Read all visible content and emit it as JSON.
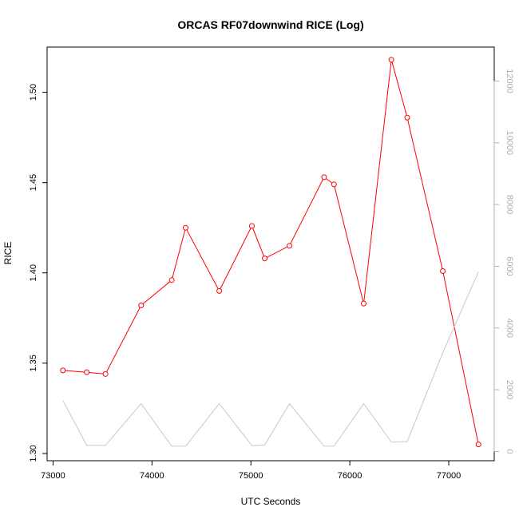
{
  "chart_data": {
    "type": "line",
    "title": "ORCAS RF07downwind RICE (Log)",
    "xlabel": "UTC Seconds",
    "ylabel": "RICE",
    "xlim": [
      72940,
      77460
    ],
    "ylim": [
      1.296,
      1.525
    ],
    "y2lim": [
      -300,
      13100
    ],
    "x_ticks": [
      73000,
      74000,
      75000,
      76000,
      77000
    ],
    "y_ticks": [
      1.3,
      1.35,
      1.4,
      1.45,
      1.5
    ],
    "y2_ticks": [
      0,
      2000,
      4000,
      6000,
      8000,
      10000,
      12000
    ],
    "grid": false,
    "series": [
      {
        "axis": "left",
        "color": "#ff0000",
        "marker": "open-circle",
        "x": [
          73100,
          73340,
          73530,
          73890,
          74200,
          74340,
          74680,
          75010,
          75140,
          75390,
          75740,
          75840,
          76140,
          76420,
          76580,
          76940,
          77300
        ],
        "y": [
          1.346,
          1.345,
          1.344,
          1.382,
          1.396,
          1.425,
          1.39,
          1.426,
          1.408,
          1.415,
          1.453,
          1.449,
          1.383,
          1.518,
          1.486,
          1.401,
          1.305
        ]
      },
      {
        "axis": "right",
        "color": "#c8c8c8",
        "marker": "none",
        "x": [
          73100,
          73340,
          73530,
          73890,
          74200,
          74340,
          74680,
          75010,
          75140,
          75390,
          75740,
          75840,
          76140,
          76420,
          76580,
          76940,
          77300
        ],
        "y": [
          1650,
          200,
          200,
          1550,
          170,
          170,
          1550,
          190,
          210,
          1550,
          170,
          170,
          1550,
          300,
          320,
          3200,
          5820
        ]
      }
    ]
  }
}
